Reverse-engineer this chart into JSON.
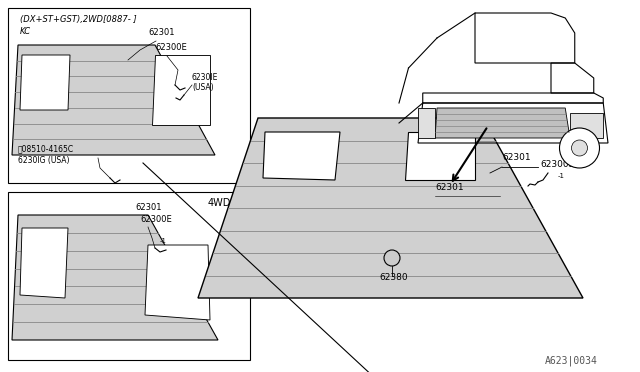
{
  "bg_color": "#ffffff",
  "line_color": "#000000",
  "text_color": "#000000",
  "fig_width": 6.4,
  "fig_height": 3.72,
  "diagram_id": "A623|0034",
  "grille_fill": "#d0d0d0",
  "slat_color": "#888888",
  "box1_label1": "(DX+ST+GST),2WD[0887- ]",
  "box1_label2": "KC",
  "box2_label": "4WD",
  "label_62301": "62301",
  "label_62300E": "62300E",
  "label_62301E": "6230lE",
  "label_USA": "(USA)",
  "label_08510": "Ⓝ08510-4165C",
  "label_6230lG": "6230lG (USA)",
  "label_62380": "62380"
}
